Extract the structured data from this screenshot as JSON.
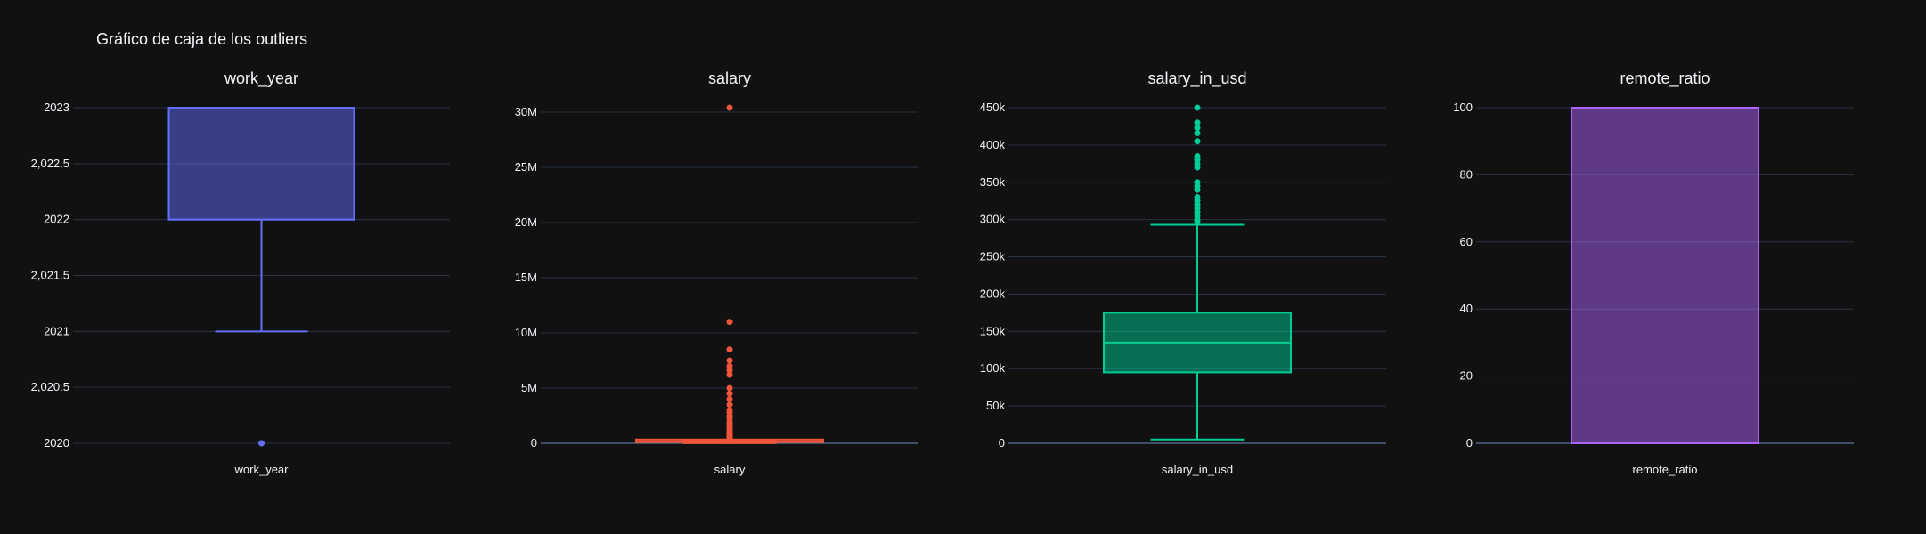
{
  "title": "Gráfico de caja de los outliers",
  "chart_data": [
    {
      "type": "box",
      "title": "work_year",
      "category": "work_year",
      "color": "#636efa",
      "yticks": [
        2020,
        2020.5,
        2021,
        2021.5,
        2022,
        2022.5,
        2023
      ],
      "ytick_labels": [
        "2020",
        "2,020.5",
        "2021",
        "2,021.5",
        "2022",
        "2,022.5",
        "2023"
      ],
      "ylim": [
        2020,
        2023
      ],
      "box": {
        "whisker_low": 2021,
        "q1": 2022,
        "median": 2022,
        "q3": 2023,
        "whisker_high": 2023
      },
      "outliers": [
        2020
      ]
    },
    {
      "type": "box",
      "title": "salary",
      "category": "salary",
      "color": "#ef553b",
      "yticks": [
        0,
        5000000,
        10000000,
        15000000,
        20000000,
        25000000,
        30000000
      ],
      "ytick_labels": [
        "0",
        "5M",
        "10M",
        "15M",
        "20M",
        "25M",
        "30M"
      ],
      "ylim": [
        0,
        30000000
      ],
      "box": {
        "whisker_low": 6000,
        "q1": 100000,
        "median": 138000,
        "q3": 180000,
        "whisker_high": 300000
      },
      "outliers": [
        30400000,
        11000000,
        8500000,
        7500000,
        7000000,
        6600000,
        6200000,
        5000000,
        4500000,
        4000000,
        3500000,
        3000000,
        2800000,
        2500000,
        2300000,
        2000000,
        1800000,
        1600000,
        1400000,
        1200000,
        1000000,
        900000,
        800000,
        700000,
        600000,
        500000,
        450000,
        400000,
        350000
      ]
    },
    {
      "type": "box",
      "title": "salary_in_usd",
      "category": "salary_in_usd",
      "color": "#00cc96",
      "yticks": [
        0,
        50000,
        100000,
        150000,
        200000,
        250000,
        300000,
        350000,
        400000,
        450000
      ],
      "ytick_labels": [
        "0",
        "50k",
        "100k",
        "150k",
        "200k",
        "250k",
        "300k",
        "350k",
        "400k",
        "450k"
      ],
      "ylim": [
        0,
        450000
      ],
      "box": {
        "whisker_low": 5132,
        "q1": 95000,
        "median": 135000,
        "q3": 175000,
        "whisker_high": 293000
      },
      "outliers": [
        450000,
        430000,
        423000,
        416000,
        405000,
        385000,
        380000,
        375000,
        370000,
        350000,
        345000,
        340000,
        330000,
        325000,
        320000,
        315000,
        310000,
        305000,
        300000,
        297000
      ]
    },
    {
      "type": "box",
      "title": "remote_ratio",
      "category": "remote_ratio",
      "color": "#ab63fa",
      "yticks": [
        0,
        20,
        40,
        60,
        80,
        100
      ],
      "ytick_labels": [
        "0",
        "20",
        "40",
        "60",
        "80",
        "100"
      ],
      "ylim": [
        0,
        100
      ],
      "box": {
        "whisker_low": 0,
        "q1": 0,
        "median": 0,
        "q3": 100,
        "whisker_high": 100
      },
      "outliers": []
    }
  ]
}
